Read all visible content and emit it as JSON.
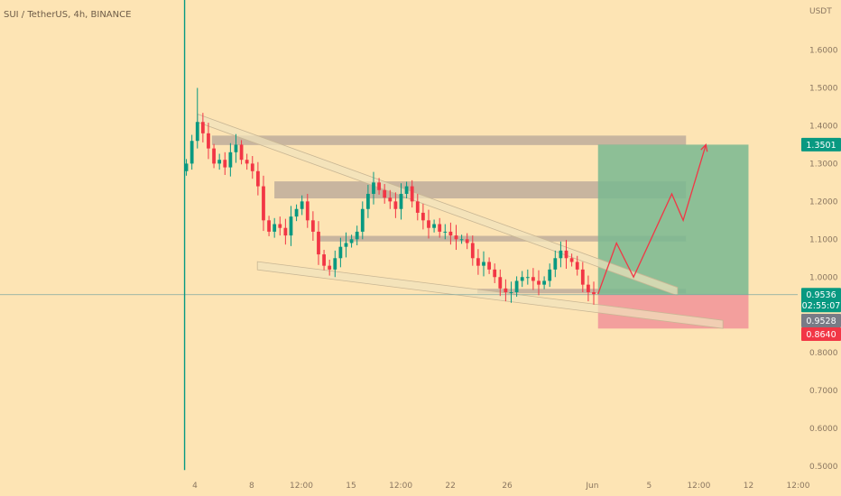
{
  "title": "SUI / TetherUS, 4h, BINANCE",
  "currency": "USDT",
  "colors": {
    "background": "#fde4b4",
    "up": "#089981",
    "down": "#f23645",
    "zone": "#b8a898",
    "wedge": "#efe2bc",
    "target": "#79b891",
    "stop": "#f2979a",
    "projection": "#f23645",
    "price_badge": "#089981",
    "stop_badge": "#f23645",
    "last_badge": "#787b86"
  },
  "chart_data": {
    "type": "candlestick",
    "y_range": [
      0.47,
      1.76
    ],
    "y_ticks": [
      {
        "value": 1.6,
        "label": "1.6000"
      },
      {
        "value": 1.5,
        "label": "1.5000"
      },
      {
        "value": 1.4,
        "label": "1.4000"
      },
      {
        "value": 1.3,
        "label": "1.3000"
      },
      {
        "value": 1.2,
        "label": "1.2000"
      },
      {
        "value": 1.1,
        "label": "1.1000"
      },
      {
        "value": 1.0,
        "label": "1.0000"
      },
      {
        "value": 0.8,
        "label": "0.8000"
      },
      {
        "value": 0.7,
        "label": "0.7000"
      },
      {
        "value": 0.6,
        "label": "0.6000"
      },
      {
        "value": 0.5,
        "label": "0.5000"
      }
    ],
    "x_ticks": [
      {
        "t": 4.0,
        "label": "4"
      },
      {
        "t": 8.0,
        "label": "8"
      },
      {
        "t": 11.5,
        "label": "12:00"
      },
      {
        "t": 15.0,
        "label": "15"
      },
      {
        "t": 18.5,
        "label": "12:00"
      },
      {
        "t": 22.0,
        "label": "22"
      },
      {
        "t": 26.0,
        "label": "26"
      },
      {
        "t": 32.0,
        "label": "Jun"
      },
      {
        "t": 36.0,
        "label": "5"
      },
      {
        "t": 39.5,
        "label": "12:00"
      },
      {
        "t": 43.0,
        "label": "12"
      },
      {
        "t": 46.5,
        "label": "12:00"
      }
    ],
    "t_start": 3.4,
    "t_end": 32.1,
    "closes": [
      1.3,
      1.36,
      1.41,
      1.38,
      1.34,
      1.3,
      1.31,
      1.29,
      1.33,
      1.35,
      1.31,
      1.3,
      1.28,
      1.24,
      1.15,
      1.12,
      1.14,
      1.13,
      1.11,
      1.16,
      1.18,
      1.2,
      1.15,
      1.12,
      1.06,
      1.03,
      1.02,
      1.05,
      1.08,
      1.09,
      1.1,
      1.12,
      1.18,
      1.22,
      1.25,
      1.23,
      1.21,
      1.2,
      1.18,
      1.22,
      1.24,
      1.2,
      1.17,
      1.15,
      1.13,
      1.14,
      1.12,
      1.12,
      1.11,
      1.1,
      1.1,
      1.09,
      1.05,
      1.03,
      1.04,
      1.02,
      1.0,
      0.97,
      0.96,
      0.96,
      0.99,
      1.0,
      1.0,
      0.99,
      0.98,
      0.99,
      1.02,
      1.05,
      1.07,
      1.05,
      1.04,
      1.02,
      0.98,
      0.96,
      0.955
    ],
    "high": 1.5,
    "spike_low": 0.49,
    "zones": [
      {
        "t1": 5.2,
        "t2": 38.6,
        "p1": 1.349,
        "p2": 1.374
      },
      {
        "t1": 9.6,
        "t2": 38.6,
        "p1": 1.208,
        "p2": 1.253
      },
      {
        "t1": 12.6,
        "t2": 38.6,
        "p1": 1.094,
        "p2": 1.109
      },
      {
        "t1": 23.9,
        "t2": 38.6,
        "p1": 0.957,
        "p2": 0.969
      }
    ],
    "wedge_top": {
      "t1": 4.2,
      "p1": 1.42,
      "t2": 38.0,
      "p2": 0.962
    },
    "wedge_bottom": {
      "t1": 8.4,
      "p1": 1.03,
      "t2": 41.2,
      "p2": 0.875
    },
    "position": {
      "t1": 32.4,
      "t2": 43.0,
      "entry": 0.9536,
      "target": 1.3501,
      "stop": 0.864
    },
    "projection": [
      {
        "t": 32.4,
        "p": 0.955
      },
      {
        "t": 33.7,
        "p": 1.09
      },
      {
        "t": 34.9,
        "p": 1.0
      },
      {
        "t": 37.6,
        "p": 1.22
      },
      {
        "t": 38.4,
        "p": 1.15
      },
      {
        "t": 40.0,
        "p": 1.35
      }
    ],
    "markers": [
      {
        "price": 1.3501,
        "label": "1.3501",
        "kind": "target"
      },
      {
        "price": 0.9536,
        "label": "0.9536",
        "kind": "current",
        "countdown": "02:55:07"
      },
      {
        "price": 0.9528,
        "label": "0.9528",
        "kind": "last"
      },
      {
        "price": 0.864,
        "label": "0.8640",
        "kind": "stop"
      }
    ]
  }
}
